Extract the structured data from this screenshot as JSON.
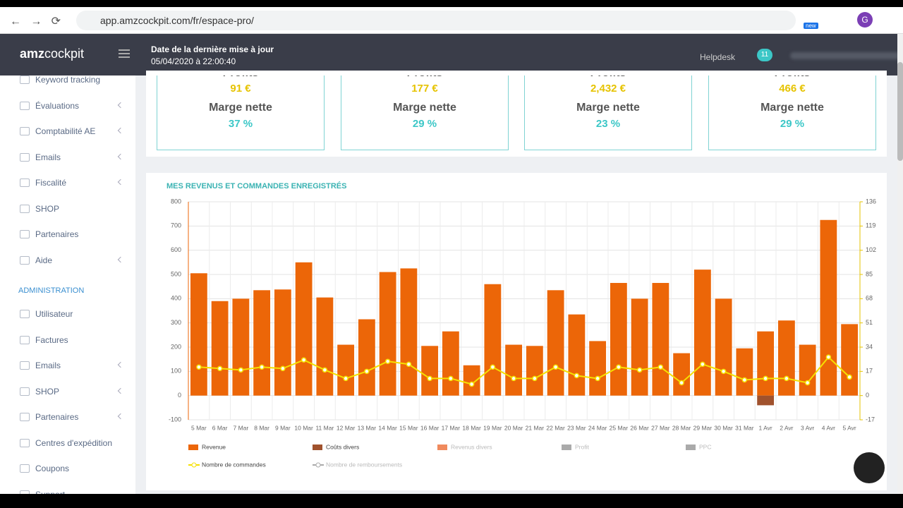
{
  "browser": {
    "url": "app.amzcockpit.com/fr/espace-pro/",
    "badge": "new",
    "avatar": "G"
  },
  "header": {
    "logo_bold": "amz",
    "logo_light": "cockpit",
    "update_label": "Date de la dernière mise à jour",
    "update_value": "05/04/2020 à 22:00:40",
    "helpdesk": "Helpdesk",
    "notifications": "11"
  },
  "sidebar": {
    "items": [
      {
        "label": "Keyword tracking",
        "chevron": false
      },
      {
        "label": "Évaluations",
        "chevron": true
      },
      {
        "label": "Comptabilité AE",
        "chevron": true
      },
      {
        "label": "Emails",
        "chevron": true
      },
      {
        "label": "Fiscalité",
        "chevron": true
      },
      {
        "label": "SHOP",
        "chevron": false
      },
      {
        "label": "Partenaires",
        "chevron": false
      },
      {
        "label": "Aide",
        "chevron": true
      }
    ],
    "section": "ADMINISTRATION",
    "admin_items": [
      {
        "label": "Utilisateur",
        "chevron": false
      },
      {
        "label": "Factures",
        "chevron": false
      },
      {
        "label": "Emails",
        "chevron": true
      },
      {
        "label": "SHOP",
        "chevron": true
      },
      {
        "label": "Partenaires",
        "chevron": true
      },
      {
        "label": "Centres d'expédition",
        "chevron": false
      },
      {
        "label": "Coupons",
        "chevron": false
      },
      {
        "label": "Support",
        "chevron": false
      }
    ]
  },
  "cards": [
    {
      "label": "Profits",
      "value": "91 €",
      "margin_label": "Marge nette",
      "margin": "37 %"
    },
    {
      "label": "Profits",
      "value": "177 €",
      "margin_label": "Marge nette",
      "margin": "29 %"
    },
    {
      "label": "Profits",
      "value": "2,432 €",
      "margin_label": "Marge nette",
      "margin": "23 %"
    },
    {
      "label": "Profits",
      "value": "466 €",
      "margin_label": "Marge nette",
      "margin": "29 %"
    }
  ],
  "chart_data": {
    "type": "bar",
    "title": "MES REVENUS ET COMMANDES ENREGISTRÉS",
    "categories": [
      "5 Mar",
      "6 Mar",
      "7 Mar",
      "8 Mar",
      "9 Mar",
      "10 Mar",
      "11 Mar",
      "12 Mar",
      "13 Mar",
      "14 Mar",
      "15 Mar",
      "16 Mar",
      "17 Mar",
      "18 Mar",
      "19 Mar",
      "20 Mar",
      "21 Mar",
      "22 Mar",
      "23 Mar",
      "24 Mar",
      "25 Mar",
      "26 Mar",
      "27 Mar",
      "28 Mar",
      "29 Mar",
      "30 Mar",
      "31 Mar",
      "1 Avr",
      "2 Avr",
      "3 Avr",
      "4 Avr",
      "5 Avr"
    ],
    "series": [
      {
        "name": "Revenue",
        "type": "bar",
        "color": "#ec6608",
        "values": [
          505,
          390,
          400,
          435,
          438,
          550,
          405,
          210,
          315,
          510,
          525,
          205,
          265,
          125,
          460,
          210,
          205,
          435,
          335,
          225,
          465,
          400,
          465,
          175,
          520,
          400,
          195,
          265,
          310,
          210,
          725,
          295
        ]
      },
      {
        "name": "Coûts divers",
        "type": "bar",
        "color": "#a0522d",
        "values": [
          0,
          0,
          0,
          0,
          0,
          0,
          0,
          0,
          0,
          0,
          0,
          0,
          0,
          0,
          0,
          0,
          0,
          0,
          0,
          0,
          0,
          0,
          0,
          0,
          0,
          0,
          0,
          -40,
          0,
          0,
          0,
          0
        ]
      },
      {
        "name": "Nombre de commandes",
        "type": "line",
        "axis": "y2",
        "color": "#f5e000",
        "values": [
          20,
          19,
          18,
          20,
          19,
          25,
          18,
          12,
          17,
          24,
          22,
          12,
          12,
          8,
          20,
          12,
          12,
          20,
          14,
          12,
          20,
          18,
          20,
          9,
          22,
          17,
          11,
          12,
          12,
          9,
          27,
          13
        ]
      }
    ],
    "legend_inactive": [
      {
        "name": "Revenus divers",
        "color": "#f08a5d"
      },
      {
        "name": "Profit",
        "color": "#aaaaaa"
      },
      {
        "name": "PPC",
        "color": "#aaaaaa"
      },
      {
        "name": "Nombre de remboursements",
        "color": "#aaaaaa"
      }
    ],
    "ylim": [
      -100,
      800
    ],
    "yticks": [
      -100,
      0,
      100,
      200,
      300,
      400,
      500,
      600,
      700,
      800
    ],
    "y2lim": [
      -17,
      136
    ],
    "y2ticks": [
      -17,
      0,
      17,
      34,
      51,
      68,
      85,
      102,
      119,
      136
    ],
    "grid": true
  }
}
